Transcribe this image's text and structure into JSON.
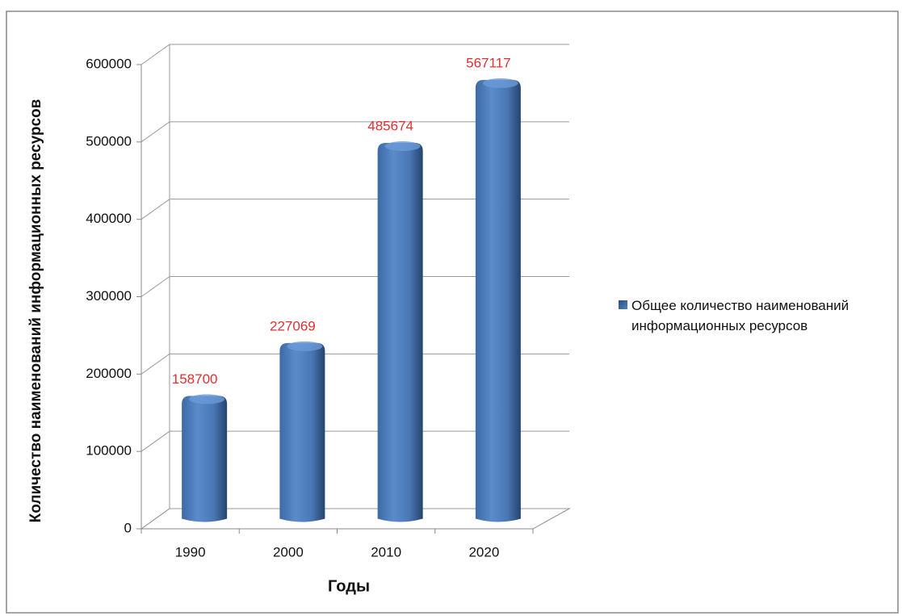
{
  "chart_data": {
    "type": "bar3d",
    "x_label": "Годы",
    "y_label": "Количество наименований информационных ресурсов",
    "categories": [
      "1990",
      "2000",
      "2010",
      "2020"
    ],
    "series": [
      {
        "name": "Общее количество наименований информационных ресурсов",
        "color": "#4f81bd",
        "values": [
          158700,
          227069,
          485674,
          567117
        ]
      }
    ],
    "value_label_color": "#e03030",
    "ylim": [
      0,
      600000
    ],
    "yticks": [
      0,
      100000,
      200000,
      300000,
      400000,
      500000,
      600000
    ],
    "grid": true,
    "legend": "right"
  }
}
